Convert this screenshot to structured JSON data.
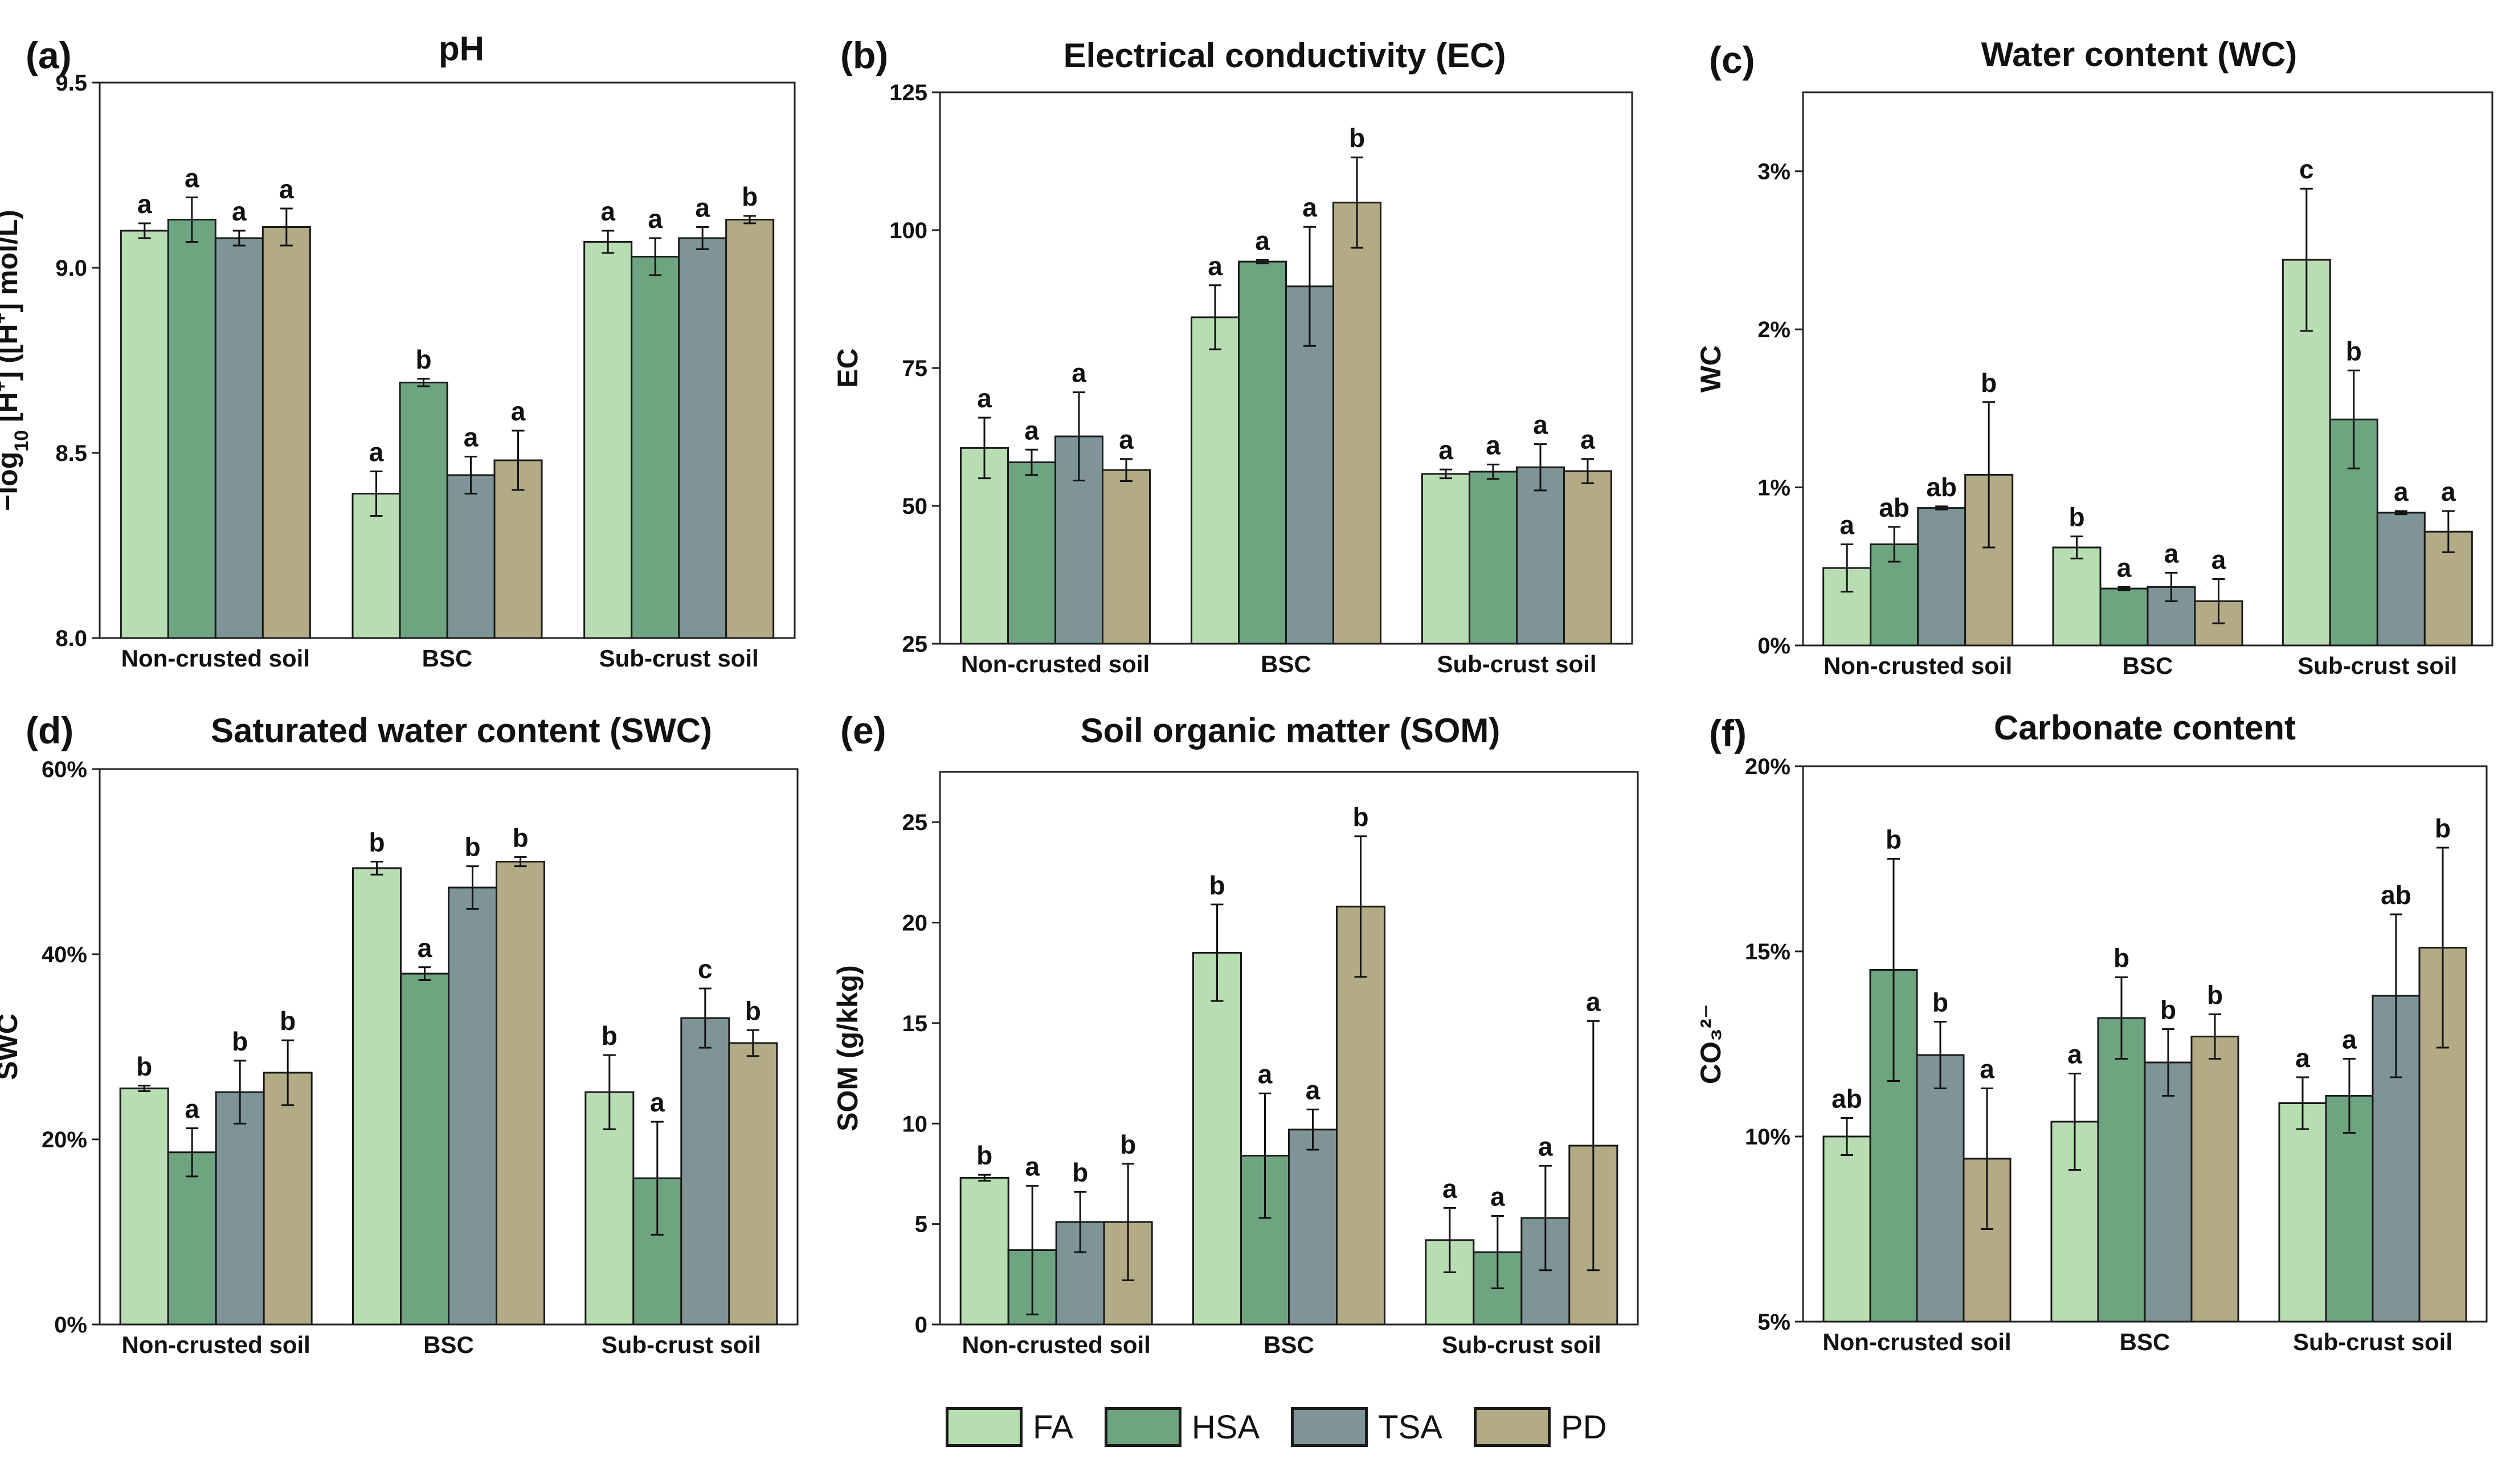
{
  "colors": {
    "FA": "#b9ddb3",
    "HSA": "#6ea480",
    "TSA": "#7e9497",
    "PD": "#b3ab85"
  },
  "legend": {
    "items": [
      {
        "key": "FA",
        "label": "FA",
        "color": "#b9ddb3"
      },
      {
        "key": "HSA",
        "label": "HSA",
        "color": "#6ea480"
      },
      {
        "key": "TSA",
        "label": "TSA",
        "color": "#7e9497"
      },
      {
        "key": "PD",
        "label": "PD",
        "color": "#b3ab85"
      }
    ]
  },
  "chart_data": [
    {
      "panel": "(a)",
      "type": "bar",
      "title": "pH",
      "ylabel": "−log10 [H⁺] ([H⁺] mol/L)",
      "ylim": [
        8.0,
        9.5
      ],
      "yticks": [
        "8.0",
        "8.5",
        "9.0",
        "9.5"
      ],
      "ytick_values": [
        8.0,
        8.5,
        9.0,
        9.5
      ],
      "categories": [
        "Non-crusted soil",
        "BSC",
        "Sub-crust soil"
      ],
      "series": [
        {
          "name": "FA",
          "values": [
            9.1,
            8.39,
            9.07
          ],
          "errors": [
            0.02,
            0.06,
            0.03
          ],
          "letters": [
            "a",
            "a",
            "a"
          ]
        },
        {
          "name": "HSA",
          "values": [
            9.13,
            8.69,
            9.03
          ],
          "errors": [
            0.06,
            0.01,
            0.05
          ],
          "letters": [
            "a",
            "b",
            "a"
          ]
        },
        {
          "name": "TSA",
          "values": [
            9.08,
            8.44,
            9.08
          ],
          "errors": [
            0.02,
            0.05,
            0.03
          ],
          "letters": [
            "a",
            "a",
            "a"
          ]
        },
        {
          "name": "PD",
          "values": [
            9.11,
            8.48,
            9.13
          ],
          "errors": [
            0.05,
            0.08,
            0.01
          ],
          "letters": [
            "a",
            "a",
            "b"
          ]
        }
      ]
    },
    {
      "panel": "(b)",
      "type": "bar",
      "title": "Electrical conductivity (EC)",
      "ylabel": "EC",
      "ylim": [
        25,
        125
      ],
      "yticks": [
        "25",
        "50",
        "75",
        "100",
        "125"
      ],
      "ytick_values": [
        25,
        50,
        75,
        100,
        125
      ],
      "categories": [
        "Non-crusted soil",
        "BSC",
        "Sub-crust soil"
      ],
      "series": [
        {
          "name": "FA",
          "values": [
            60.5,
            84.2,
            55.8
          ],
          "errors": [
            5.5,
            5.8,
            0.8
          ],
          "letters": [
            "a",
            "a",
            "a"
          ]
        },
        {
          "name": "HSA",
          "values": [
            57.9,
            94.3,
            56.2
          ],
          "errors": [
            2.3,
            0.3,
            1.3
          ],
          "letters": [
            "a",
            "a",
            "a"
          ]
        },
        {
          "name": "TSA",
          "values": [
            62.6,
            89.8,
            57.0
          ],
          "errors": [
            8.0,
            10.8,
            4.2
          ],
          "letters": [
            "a",
            "a",
            "a"
          ]
        },
        {
          "name": "PD",
          "values": [
            56.5,
            105.0,
            56.3
          ],
          "errors": [
            2.0,
            8.2,
            2.2
          ],
          "letters": [
            "a",
            "b",
            "a"
          ]
        }
      ]
    },
    {
      "panel": "(c)",
      "type": "bar",
      "title": "Water content (WC)",
      "ylabel": "WC",
      "ylim": [
        0,
        3.5
      ],
      "yticks": [
        "0%",
        "1%",
        "2%",
        "3%"
      ],
      "ytick_values": [
        0,
        1,
        2,
        3
      ],
      "categories": [
        "Non-crusted soil",
        "BSC",
        "Sub-crust soil"
      ],
      "series": [
        {
          "name": "FA",
          "values": [
            0.49,
            0.62,
            2.44
          ],
          "errors": [
            0.15,
            0.07,
            0.45
          ],
          "letters": [
            "a",
            "b",
            "c"
          ]
        },
        {
          "name": "HSA",
          "values": [
            0.64,
            0.36,
            1.43
          ],
          "errors": [
            0.11,
            0.01,
            0.31
          ],
          "letters": [
            "ab",
            "a",
            "b"
          ]
        },
        {
          "name": "TSA",
          "values": [
            0.87,
            0.37,
            0.84
          ],
          "errors": [
            0.01,
            0.09,
            0.01
          ],
          "letters": [
            "ab",
            "a",
            "a"
          ]
        },
        {
          "name": "PD",
          "values": [
            1.08,
            0.28,
            0.72
          ],
          "errors": [
            0.46,
            0.14,
            0.13
          ],
          "letters": [
            "b",
            "a",
            "a"
          ]
        }
      ]
    },
    {
      "panel": "(d)",
      "type": "bar",
      "title": "Saturated water content (SWC)",
      "ylabel": "SWC",
      "ylim": [
        0,
        60
      ],
      "yticks": [
        "0%",
        "20%",
        "40%",
        "60%"
      ],
      "ytick_values": [
        0,
        20,
        40,
        60
      ],
      "categories": [
        "Non-crusted soil",
        "BSC",
        "Sub-crust soil"
      ],
      "series": [
        {
          "name": "FA",
          "values": [
            25.5,
            49.3,
            25.1
          ],
          "errors": [
            0.3,
            0.7,
            4.0
          ],
          "letters": [
            "b",
            "b",
            "b"
          ]
        },
        {
          "name": "HSA",
          "values": [
            18.6,
            37.9,
            15.8
          ],
          "errors": [
            2.6,
            0.7,
            6.1
          ],
          "letters": [
            "a",
            "a",
            "a"
          ]
        },
        {
          "name": "TSA",
          "values": [
            25.1,
            47.2,
            33.1
          ],
          "errors": [
            3.4,
            2.3,
            3.2
          ],
          "letters": [
            "b",
            "b",
            "c"
          ]
        },
        {
          "name": "PD",
          "values": [
            27.2,
            50.0,
            30.4
          ],
          "errors": [
            3.5,
            0.5,
            1.4
          ],
          "letters": [
            "b",
            "b",
            "b"
          ]
        }
      ]
    },
    {
      "panel": "(e)",
      "type": "bar",
      "title": "Soil organic matter (SOM)",
      "ylabel": "SOM (g/kkg)",
      "ylim": [
        0,
        27.5
      ],
      "yticks": [
        "0",
        "5",
        "10",
        "15",
        "20",
        "25"
      ],
      "ytick_values": [
        0,
        5,
        10,
        15,
        20,
        25
      ],
      "categories": [
        "Non-crusted soil",
        "BSC",
        "Sub-crust soil"
      ],
      "series": [
        {
          "name": "FA",
          "values": [
            7.3,
            18.5,
            4.2
          ],
          "errors": [
            0.15,
            2.4,
            1.6
          ],
          "letters": [
            "b",
            "b",
            "a"
          ]
        },
        {
          "name": "HSA",
          "values": [
            3.7,
            8.4,
            3.6
          ],
          "errors": [
            3.2,
            3.1,
            1.8
          ],
          "letters": [
            "a",
            "a",
            "a"
          ]
        },
        {
          "name": "TSA",
          "values": [
            5.1,
            9.7,
            5.3
          ],
          "errors": [
            1.5,
            1.0,
            2.6
          ],
          "letters": [
            "b",
            "a",
            "a"
          ]
        },
        {
          "name": "PD",
          "values": [
            5.1,
            20.8,
            8.9
          ],
          "errors": [
            2.9,
            3.5,
            6.2
          ],
          "letters": [
            "b",
            "b",
            "a"
          ]
        }
      ]
    },
    {
      "panel": "(f)",
      "type": "bar",
      "title": "Carbonate content",
      "ylabel": "CO₃²⁻",
      "ylim": [
        5,
        20
      ],
      "yticks": [
        "5%",
        "10%",
        "15%",
        "20%"
      ],
      "ytick_values": [
        5,
        10,
        15,
        20
      ],
      "categories": [
        "Non-crusted soil",
        "BSC",
        "Sub-crust soil"
      ],
      "series": [
        {
          "name": "FA",
          "values": [
            10.0,
            10.4,
            10.9
          ],
          "errors": [
            0.5,
            1.3,
            0.7
          ],
          "letters": [
            "ab",
            "a",
            "a"
          ]
        },
        {
          "name": "HSA",
          "values": [
            14.5,
            13.2,
            11.1
          ],
          "errors": [
            3.0,
            1.1,
            1.0
          ],
          "letters": [
            "b",
            "b",
            "a"
          ]
        },
        {
          "name": "TSA",
          "values": [
            12.2,
            12.0,
            13.8
          ],
          "errors": [
            0.9,
            0.9,
            2.2
          ],
          "letters": [
            "b",
            "b",
            "ab"
          ]
        },
        {
          "name": "PD",
          "values": [
            9.4,
            12.7,
            15.1
          ],
          "errors": [
            1.9,
            0.6,
            2.7
          ],
          "letters": [
            "a",
            "b",
            "b"
          ]
        }
      ]
    }
  ]
}
